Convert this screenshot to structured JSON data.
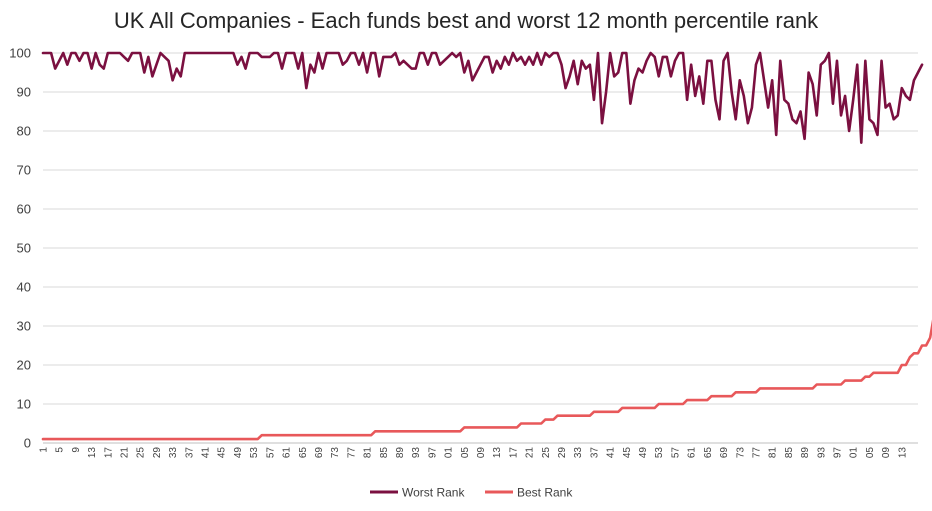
{
  "chart_data": {
    "type": "line",
    "title": "UK All Companies - Each funds best and worst 12 month percentile rank",
    "xlabel": "",
    "ylabel": "",
    "ylim": [
      0,
      100
    ],
    "y_ticks": [
      0,
      10,
      20,
      30,
      40,
      50,
      60,
      70,
      80,
      90,
      100
    ],
    "x_count": 217,
    "x_tick_labels": [
      "1",
      "5",
      "9",
      "13",
      "17",
      "21",
      "25",
      "29",
      "33",
      "37",
      "41",
      "45",
      "49",
      "53",
      "57",
      "61",
      "65",
      "69",
      "73",
      "77",
      "81",
      "85",
      "89",
      "93",
      "97",
      "101",
      "105",
      "109",
      "113",
      "117",
      "121",
      "125",
      "129",
      "133",
      "137",
      "141",
      "145",
      "149",
      "153",
      "157",
      "161",
      "165",
      "169",
      "173",
      "177",
      "181",
      "185",
      "189",
      "193",
      "197",
      "201",
      "205",
      "209",
      "213"
    ],
    "grid": true,
    "legend_position": "bottom",
    "series": [
      {
        "name": "Worst Rank",
        "color": "#7B1040",
        "values": [
          100,
          100,
          100,
          96,
          98,
          100,
          97,
          100,
          100,
          98,
          100,
          100,
          96,
          100,
          97,
          96,
          100,
          100,
          100,
          100,
          99,
          98,
          100,
          100,
          100,
          95,
          99,
          94,
          97,
          100,
          99,
          98,
          93,
          96,
          94,
          100,
          100,
          100,
          100,
          100,
          100,
          100,
          100,
          100,
          100,
          100,
          100,
          100,
          97,
          99,
          96,
          100,
          100,
          100,
          99,
          99,
          99,
          100,
          100,
          96,
          100,
          100,
          100,
          96,
          100,
          91,
          97,
          95,
          100,
          96,
          100,
          100,
          100,
          100,
          97,
          98,
          100,
          100,
          97,
          100,
          95,
          100,
          100,
          94,
          99,
          99,
          99,
          100,
          97,
          98,
          97,
          96,
          96,
          100,
          100,
          97,
          100,
          100,
          97,
          98,
          99,
          100,
          99,
          100,
          95,
          98,
          93,
          95,
          97,
          99,
          99,
          95,
          98,
          96,
          99,
          97,
          100,
          98,
          99,
          97,
          99,
          97,
          100,
          97,
          100,
          99,
          100,
          100,
          97,
          91,
          94,
          98,
          92,
          98,
          96,
          97,
          88,
          100,
          82,
          90,
          100,
          94,
          95,
          100,
          100,
          87,
          93,
          96,
          95,
          98,
          100,
          99,
          94,
          99,
          99,
          94,
          98,
          100,
          100,
          88,
          97,
          89,
          94,
          87,
          98,
          98,
          88,
          83,
          98,
          100,
          90,
          83,
          93,
          89,
          82,
          86,
          97,
          100,
          93,
          86,
          93,
          79,
          98,
          88,
          87,
          83,
          82,
          85,
          78,
          95,
          92,
          84,
          97,
          98,
          100,
          87,
          98,
          84,
          89,
          80,
          88,
          97,
          77,
          98,
          83,
          82,
          79,
          98,
          86,
          87,
          83,
          84,
          91,
          89,
          88,
          93,
          95,
          97
        ]
      },
      {
        "name": "Best Rank",
        "color": "#E8585A",
        "values": [
          1,
          1,
          1,
          1,
          1,
          1,
          1,
          1,
          1,
          1,
          1,
          1,
          1,
          1,
          1,
          1,
          1,
          1,
          1,
          1,
          1,
          1,
          1,
          1,
          1,
          1,
          1,
          1,
          1,
          1,
          1,
          1,
          1,
          1,
          1,
          1,
          1,
          1,
          1,
          1,
          1,
          1,
          1,
          1,
          1,
          1,
          1,
          1,
          1,
          1,
          1,
          1,
          1,
          1,
          2,
          2,
          2,
          2,
          2,
          2,
          2,
          2,
          2,
          2,
          2,
          2,
          2,
          2,
          2,
          2,
          2,
          2,
          2,
          2,
          2,
          2,
          2,
          2,
          2,
          2,
          2,
          2,
          3,
          3,
          3,
          3,
          3,
          3,
          3,
          3,
          3,
          3,
          3,
          3,
          3,
          3,
          3,
          3,
          3,
          3,
          3,
          3,
          3,
          3,
          4,
          4,
          4,
          4,
          4,
          4,
          4,
          4,
          4,
          4,
          4,
          4,
          4,
          4,
          5,
          5,
          5,
          5,
          5,
          5,
          6,
          6,
          6,
          7,
          7,
          7,
          7,
          7,
          7,
          7,
          7,
          7,
          8,
          8,
          8,
          8,
          8,
          8,
          8,
          9,
          9,
          9,
          9,
          9,
          9,
          9,
          9,
          9,
          10,
          10,
          10,
          10,
          10,
          10,
          10,
          11,
          11,
          11,
          11,
          11,
          11,
          12,
          12,
          12,
          12,
          12,
          12,
          13,
          13,
          13,
          13,
          13,
          13,
          14,
          14,
          14,
          14,
          14,
          14,
          14,
          14,
          14,
          14,
          14,
          14,
          14,
          14,
          15,
          15,
          15,
          15,
          15,
          15,
          15,
          16,
          16,
          16,
          16,
          16,
          17,
          17,
          18,
          18,
          18,
          18,
          18,
          18,
          18,
          20,
          20,
          22,
          23,
          23,
          25,
          25,
          27,
          33
        ]
      }
    ]
  }
}
